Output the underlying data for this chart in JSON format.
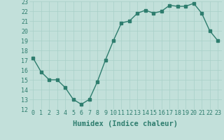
{
  "x": [
    0,
    1,
    2,
    3,
    4,
    5,
    6,
    7,
    8,
    9,
    10,
    11,
    12,
    13,
    14,
    15,
    16,
    17,
    18,
    19,
    20,
    21,
    22,
    23
  ],
  "y": [
    17.2,
    15.8,
    15.0,
    15.0,
    14.2,
    13.0,
    12.5,
    13.0,
    14.8,
    17.0,
    19.0,
    20.8,
    21.0,
    21.8,
    22.1,
    21.8,
    22.0,
    22.6,
    22.5,
    22.5,
    22.8,
    21.8,
    20.0,
    19.0
  ],
  "line_color": "#2e7d6e",
  "bg_color": "#c2e0da",
  "grid_color": "#a8cfc8",
  "xlabel": "Humidex (Indice chaleur)",
  "ylim": [
    12,
    23
  ],
  "xlim": [
    -0.5,
    23.5
  ],
  "yticks": [
    12,
    13,
    14,
    15,
    16,
    17,
    18,
    19,
    20,
    21,
    22,
    23
  ],
  "xticks": [
    0,
    1,
    2,
    3,
    4,
    5,
    6,
    7,
    8,
    9,
    10,
    11,
    12,
    13,
    14,
    15,
    16,
    17,
    18,
    19,
    20,
    21,
    22,
    23
  ],
  "xlabel_fontsize": 7.5,
  "tick_fontsize": 6.0,
  "marker_size": 2.5,
  "line_width": 1.0
}
